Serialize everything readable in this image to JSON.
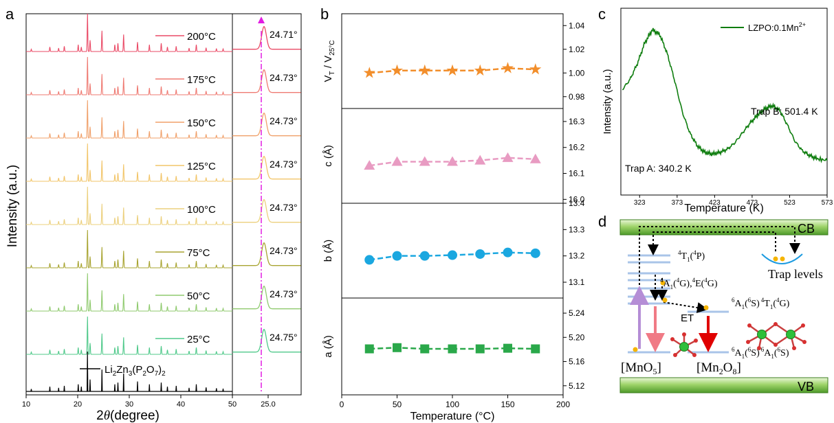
{
  "panels": {
    "a": "a",
    "b": "b",
    "c": "c",
    "d": "d"
  },
  "colors": {
    "c25": "#4fc98a",
    "c50": "#8fca6e",
    "c75": "#a8a431",
    "c100": "#ecd07d",
    "c125": "#f2c569",
    "c150": "#f0a06a",
    "c175": "#ef7a72",
    "c200": "#ea4a66",
    "ref": "#000000",
    "vline": "#e21ce2",
    "vol": "#f28e2b",
    "c": "#e89bc2",
    "b": "#1aa7e0",
    "a": "#2aa84a",
    "tl": "#0e7d0e"
  },
  "panel_a": {
    "ylabel": "Intensity (a.u.)",
    "xlabel_italic": "θ",
    "xlabel_pre": "2",
    "xlabel_post": "(degree)",
    "xticks_left": [
      "10",
      "20",
      "30",
      "40",
      "50"
    ],
    "xticks_right": [
      "25.0"
    ],
    "traces": [
      {
        "label": "200°C",
        "peak": "24.71°",
        "color": "c200"
      },
      {
        "label": "175°C",
        "peak": "24.73°",
        "color": "c175"
      },
      {
        "label": "150°C",
        "peak": "24.73°",
        "color": "c150"
      },
      {
        "label": "125°C",
        "peak": "24.73°",
        "color": "c125"
      },
      {
        "label": "100°C",
        "peak": "24.73°",
        "color": "c100"
      },
      {
        "label": "75°C",
        "peak": "24.73°",
        "color": "c75"
      },
      {
        "label": "50°C",
        "peak": "24.73°",
        "color": "c50"
      },
      {
        "label": "25°C",
        "peak": "24.75°",
        "color": "c25"
      }
    ],
    "reference": {
      "l1": "Li",
      "s1": "2",
      "l2": "Zn",
      "s2": "3",
      "l3": "(P",
      "s3": "2",
      "l4": "O",
      "s4": "7",
      "l5": ")",
      "s5": "2"
    }
  },
  "chart_data": [
    {
      "type": "line",
      "title": "",
      "x": [
        25,
        50,
        75,
        100,
        125,
        150,
        175
      ],
      "xlabel": "Temperature (°C)",
      "xlim": [
        0,
        200
      ],
      "xticks": [
        0,
        50,
        100,
        150,
        200
      ],
      "series": [
        {
          "ylabel_pre": "V",
          "ylabel_sub1": "T",
          "ylabel_mid": " / V",
          "ylabel_sub2": "25°C",
          "values": [
            1.0,
            1.002,
            1.002,
            1.002,
            1.002,
            1.004,
            1.003
          ],
          "ylim": [
            0.97,
            1.05
          ],
          "yticks": [
            "0.98",
            "1.00",
            "1.02",
            "1.04"
          ],
          "marker": "star",
          "color": "vol"
        },
        {
          "ylabel": "c (Å)",
          "values": [
            16.13,
            16.145,
            16.145,
            16.145,
            16.15,
            16.16,
            16.155
          ],
          "ylim": [
            15.985,
            16.35
          ],
          "yticks": [
            "16.0",
            "16.1",
            "16.2",
            "16.3"
          ],
          "marker": "triangle",
          "color": "c"
        },
        {
          "ylabel": "b (Å)",
          "values": [
            13.185,
            13.2,
            13.2,
            13.203,
            13.207,
            13.213,
            13.21
          ],
          "ylim": [
            13.04,
            13.4
          ],
          "yticks": [
            "13.1",
            "13.2",
            "13.3",
            "13.4"
          ],
          "marker": "circle",
          "color": "b"
        },
        {
          "ylabel": "a (Å)",
          "values": [
            5.181,
            5.183,
            5.181,
            5.181,
            5.181,
            5.182,
            5.181
          ],
          "ylim": [
            5.105,
            5.265
          ],
          "yticks": [
            "5.12",
            "5.16",
            "5.20",
            "5.24"
          ],
          "marker": "square",
          "color": "a"
        }
      ]
    },
    {
      "type": "line",
      "title": "",
      "xlabel": "Temperature (K)",
      "ylabel": "Intensity (a.u.)",
      "xlim": [
        298,
        573
      ],
      "xticks": [
        "323",
        "373",
        "423",
        "473",
        "523",
        "573"
      ],
      "legend": "top-right",
      "series": [
        {
          "name_pre": "LZPO:0.1Mn",
          "name_sup": "2+",
          "x": [
            300,
            310,
            320,
            330,
            340,
            350,
            360,
            370,
            380,
            390,
            400,
            410,
            420,
            430,
            440,
            450,
            460,
            470,
            480,
            490,
            500,
            510,
            520,
            530,
            540,
            550,
            560,
            573
          ],
          "values": [
            0.62,
            0.68,
            0.78,
            0.91,
            0.99,
            0.96,
            0.84,
            0.67,
            0.48,
            0.35,
            0.27,
            0.23,
            0.22,
            0.23,
            0.25,
            0.29,
            0.35,
            0.41,
            0.46,
            0.5,
            0.52,
            0.49,
            0.4,
            0.3,
            0.24,
            0.21,
            0.19,
            0.18
          ]
        }
      ],
      "annotations": [
        "Trap A: 340.2 K",
        "Trap B: 501.4 K"
      ]
    }
  ],
  "panel_d": {
    "cb": "CB",
    "vb": "VB",
    "trap": "Trap levels",
    "et": "ET",
    "mno5": "[MnO",
    "mno5_sub": "5",
    "mn2o8_pre": "[Mn",
    "mn2o8_s1": "2",
    "mn2o8_mid": "O",
    "mn2o8_s2": "8",
    "close": "]",
    "lvl1": "4T1(4P)",
    "lvl2": "4A1(4G),4E(4G)",
    "lvl3": "6A1(6S) 4T1(4G)",
    "lvl4": "6A1(6S) 6A1(6S)"
  }
}
